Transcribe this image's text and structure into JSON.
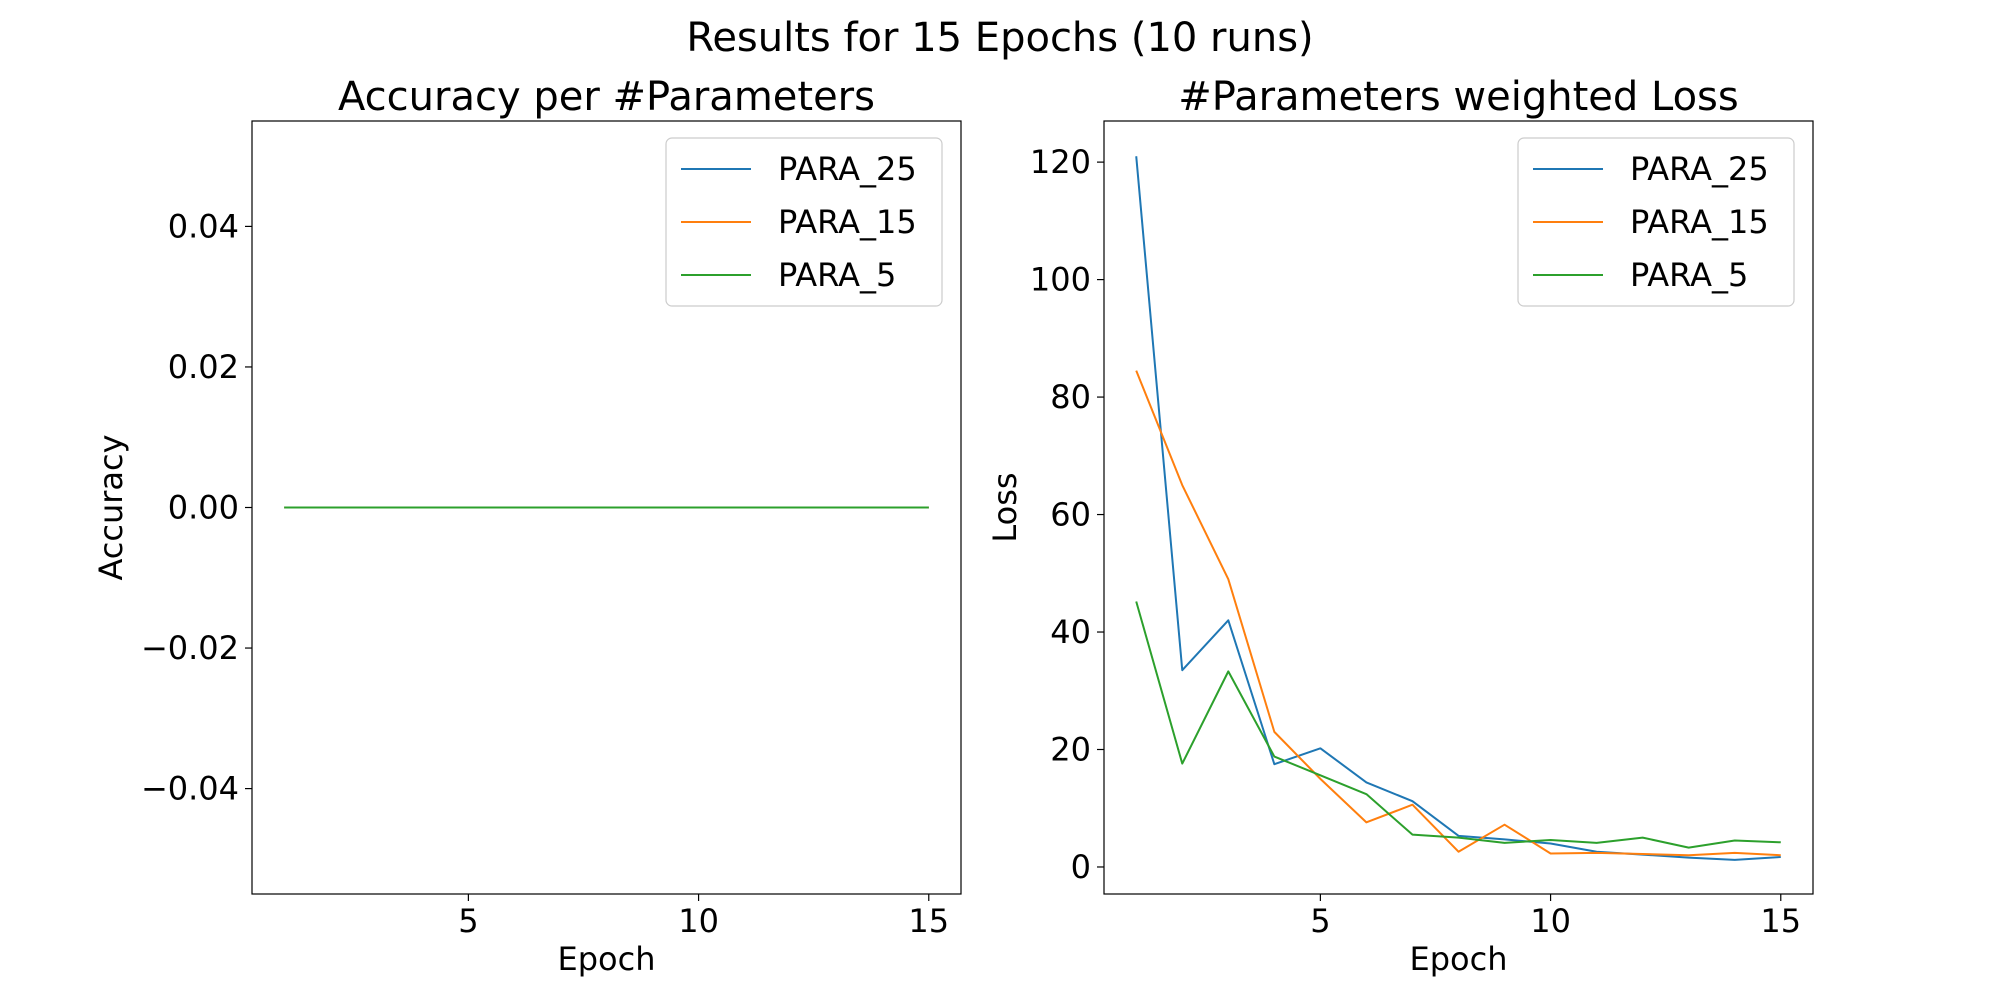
{
  "suptitle": "Results for 15 Epochs (10 runs)",
  "colors": {
    "PARA_25": "#1f77b4",
    "PARA_15": "#ff7f0e",
    "PARA_5": "#2ca02c"
  },
  "chart_data": [
    {
      "type": "line",
      "title": "Accuracy per #Parameters",
      "xlabel": "Epoch",
      "ylabel": "Accuracy",
      "xlim": [
        0.3,
        15.7
      ],
      "ylim": [
        -0.055,
        0.055
      ],
      "xticks": [
        5,
        10,
        15
      ],
      "xtick_labels": [
        "5",
        "10",
        "15"
      ],
      "yticks": [
        -0.04,
        -0.02,
        0.0,
        0.02,
        0.04
      ],
      "ytick_labels": [
        "−0.04",
        "−0.02",
        "0.00",
        "0.02",
        "0.04"
      ],
      "legend_position": "top-right",
      "grid": false,
      "x": [
        1,
        2,
        3,
        4,
        5,
        6,
        7,
        8,
        9,
        10,
        11,
        12,
        13,
        14,
        15
      ],
      "series": [
        {
          "name": "PARA_25",
          "values": [
            0,
            0,
            0,
            0,
            0,
            0,
            0,
            0,
            0,
            0,
            0,
            0,
            0,
            0,
            0
          ]
        },
        {
          "name": "PARA_15",
          "values": [
            0,
            0,
            0,
            0,
            0,
            0,
            0,
            0,
            0,
            0,
            0,
            0,
            0,
            0,
            0
          ]
        },
        {
          "name": "PARA_5",
          "values": [
            0,
            0,
            0,
            0,
            0,
            0,
            0,
            0,
            0,
            0,
            0,
            0,
            0,
            0,
            0
          ]
        }
      ]
    },
    {
      "type": "line",
      "title": "#Parameters weighted Loss",
      "xlabel": "Epoch",
      "ylabel": "Loss",
      "xlim": [
        0.3,
        15.7
      ],
      "ylim": [
        -4.6,
        127
      ],
      "xticks": [
        5,
        10,
        15
      ],
      "xtick_labels": [
        "5",
        "10",
        "15"
      ],
      "yticks": [
        0,
        20,
        40,
        60,
        80,
        100,
        120
      ],
      "ytick_labels": [
        "0",
        "20",
        "40",
        "60",
        "80",
        "100",
        "120"
      ],
      "legend_position": "top-right",
      "grid": false,
      "x": [
        1,
        2,
        3,
        4,
        5,
        6,
        7,
        8,
        9,
        10,
        11,
        12,
        13,
        14,
        15
      ],
      "series": [
        {
          "name": "PARA_25",
          "values": [
            121,
            33.5,
            42,
            17.5,
            20.2,
            14.4,
            11.2,
            5.3,
            4.7,
            4.0,
            2.6,
            2.1,
            1.6,
            1.2,
            1.7
          ]
        },
        {
          "name": "PARA_15",
          "values": [
            84.5,
            65,
            49,
            23,
            15,
            7.6,
            10.6,
            2.6,
            7.2,
            2.3,
            2.4,
            2.2,
            2.0,
            2.4,
            2.0
          ]
        },
        {
          "name": "PARA_5",
          "values": [
            45.2,
            17.6,
            33.3,
            18.8,
            15.6,
            12.4,
            5.5,
            5.0,
            4.1,
            4.6,
            4.1,
            5.0,
            3.3,
            4.5,
            4.2
          ]
        }
      ]
    }
  ]
}
